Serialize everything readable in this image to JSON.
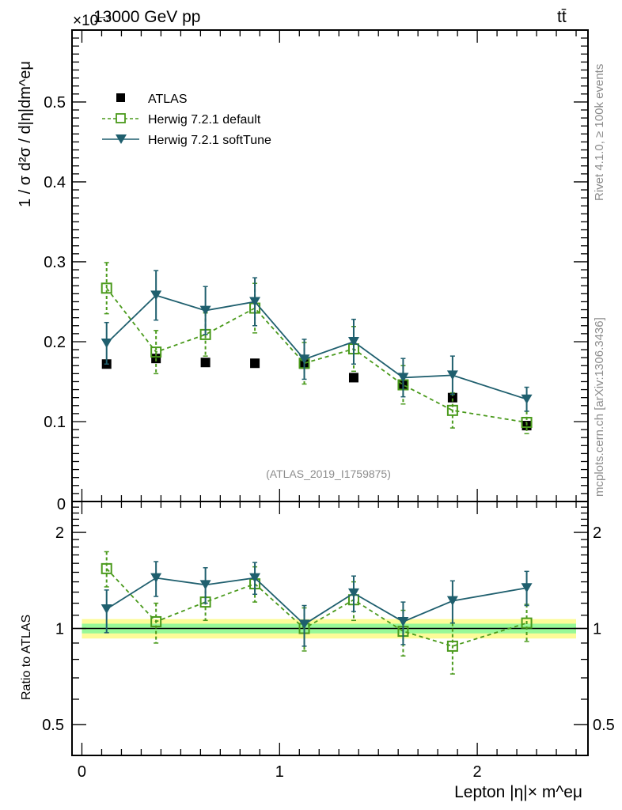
{
  "header": {
    "left_label": "13000 GeV pp",
    "right_label": "tt̄",
    "exponent_label": "×10⁻³"
  },
  "side_labels": {
    "rivet": "Rivet 4.1.0, ≥ 100k events",
    "mcplots": "mcplots.cern.ch [arXiv:1306.3436]"
  },
  "analysis_label": "(ATLAS_2019_I1759875)",
  "colors": {
    "atlas": "#000000",
    "default": "#4a9a1c",
    "softtune": "#1f5f6e",
    "band_inner": "#98f898",
    "band_outer": "#fdfb98"
  },
  "chart_data": [
    {
      "type": "scatter",
      "panel": "main",
      "title": "13000 GeV pp  tt̄",
      "xlabel": "Lepton |η|× m^eμ",
      "ylabel": "1 / σ  d²σ / d|η|dm^eμ",
      "y_multiplier": "×10⁻³",
      "xlim": [
        -0.05,
        2.56
      ],
      "ylim": [
        0,
        0.59
      ],
      "yticks": [
        0.1,
        0.2,
        0.3,
        0.4,
        0.5
      ],
      "ytick_labels": [
        "0.1",
        "0.2",
        "0.3",
        "0.4",
        "0.5"
      ],
      "zero_label": "0",
      "legend_position": "top-left",
      "x": [
        0.125,
        0.375,
        0.625,
        0.875,
        1.125,
        1.375,
        1.625,
        1.875,
        2.25
      ],
      "xerr": [
        0.125,
        0.125,
        0.125,
        0.125,
        0.125,
        0.125,
        0.125,
        0.125,
        0.25
      ],
      "series": [
        {
          "name": "ATLAS",
          "style": "marker-square-filled",
          "values": [
            0.172,
            0.179,
            0.174,
            0.173,
            0.172,
            0.155,
            0.147,
            0.13,
            0.095
          ],
          "errors": [
            0.004,
            0.004,
            0.004,
            0.004,
            0.004,
            0.004,
            0.004,
            0.004,
            0.004
          ]
        },
        {
          "name": "Herwig 7.2.1 default",
          "style": "dashed-open-square",
          "values": [
            0.267,
            0.187,
            0.209,
            0.242,
            0.173,
            0.191,
            0.146,
            0.114,
            0.099
          ],
          "errors": [
            0.032,
            0.027,
            0.027,
            0.031,
            0.026,
            0.028,
            0.024,
            0.022,
            0.014
          ]
        },
        {
          "name": "Herwig 7.2.1 softTune",
          "style": "solid-triangle-down",
          "values": [
            0.198,
            0.258,
            0.239,
            0.25,
            0.178,
            0.2,
            0.155,
            0.158,
            0.128
          ],
          "errors": [
            0.026,
            0.031,
            0.03,
            0.03,
            0.025,
            0.028,
            0.024,
            0.024,
            0.015
          ]
        }
      ]
    },
    {
      "type": "scatter",
      "panel": "ratio",
      "ylabel": "Ratio to ATLAS",
      "xlabel": "Lepton |η|× m^eμ",
      "yscale": "log",
      "xlim": [
        -0.05,
        2.56
      ],
      "ylim": [
        0.4,
        2.5
      ],
      "yticks": [
        0.5,
        1,
        2
      ],
      "ytick_labels": [
        "0.5",
        "1",
        "2"
      ],
      "xticks": [
        0,
        1,
        2
      ],
      "xtick_labels": [
        "0",
        "1",
        "2"
      ],
      "x": [
        0.125,
        0.375,
        0.625,
        0.875,
        1.125,
        1.375,
        1.625,
        1.875,
        2.25
      ],
      "band": {
        "inner_halfwidth": 0.035,
        "outer_halfwidth": 0.07,
        "xrange": [
          0,
          2.5
        ]
      },
      "series": [
        {
          "name": "Herwig 7.2.1 default",
          "values": [
            1.54,
            1.05,
            1.21,
            1.38,
            1.0,
            1.23,
            0.98,
            0.88,
            1.04
          ],
          "err_lo": [
            1.35,
            0.9,
            1.06,
            1.21,
            0.85,
            1.06,
            0.82,
            0.72,
            0.91
          ],
          "err_hi": [
            1.74,
            1.2,
            1.37,
            1.56,
            1.16,
            1.4,
            1.14,
            1.04,
            1.19
          ]
        },
        {
          "name": "Herwig 7.2.1 softTune",
          "values": [
            1.15,
            1.44,
            1.37,
            1.44,
            1.03,
            1.29,
            1.05,
            1.22,
            1.34
          ],
          "err_lo": [
            0.97,
            1.26,
            1.2,
            1.28,
            0.88,
            1.13,
            0.89,
            1.04,
            1.18
          ],
          "err_hi": [
            1.32,
            1.62,
            1.55,
            1.61,
            1.18,
            1.46,
            1.21,
            1.41,
            1.51
          ]
        }
      ]
    }
  ]
}
